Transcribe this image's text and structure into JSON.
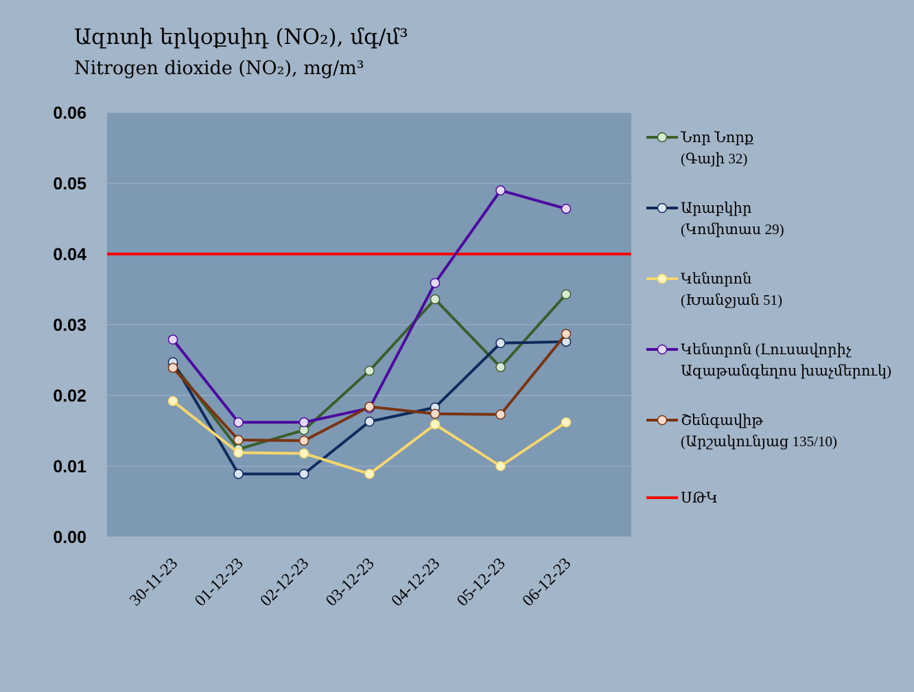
{
  "chart_data": {
    "type": "line",
    "title_line1": "Ազոտի երկօքսիդ (NO₂), մգ/մ³",
    "title_line2": "Nitrogen dioxide (NO₂), mg/m³",
    "categories": [
      "30-11-23",
      "01-12-23",
      "02-12-23",
      "03-12-23",
      "04-12-23",
      "05-12-23",
      "06-12-23"
    ],
    "ylim": [
      0,
      0.06
    ],
    "yticks": [
      "0.00",
      "0.01",
      "0.02",
      "0.03",
      "0.04",
      "0.05",
      "0.06"
    ],
    "grid": true,
    "legend_position": "right",
    "plot_background": "#7e99b3",
    "series": [
      {
        "legend_line1": "Նոր Նորք",
        "legend_line2": "(Գայի 32)",
        "color": "#3a5e2c",
        "marker_fill": "#d9ead3",
        "values": [
          0.0245,
          0.0124,
          0.0151,
          0.0235,
          0.0336,
          0.024,
          0.0343
        ]
      },
      {
        "legend_line1": "Արաբկիր",
        "legend_line2": "(Կոմիտաս 29)",
        "color": "#0f2a5c",
        "marker_fill": "#dbe4f3",
        "values": [
          0.0247,
          0.0089,
          0.0089,
          0.0163,
          0.0183,
          0.0274,
          0.0276
        ]
      },
      {
        "legend_line1": "Կենտրոն",
        "legend_line2": "(Խանջյան 51)",
        "color": "#f5d76e",
        "marker_fill": "#fff5c2",
        "values": [
          0.0192,
          0.0119,
          0.0118,
          0.0089,
          0.0159,
          0.01,
          0.0162
        ]
      },
      {
        "legend_line1": "Կենտրոն (Լուսավորիչ",
        "legend_line2": "Ազաթանգեղոս խաչմերուկ)",
        "color": "#4b0aa0",
        "marker_fill": "#e4d9f5",
        "values": [
          0.0279,
          0.0162,
          0.0162,
          0.0182,
          0.0359,
          0.049,
          0.0464
        ]
      },
      {
        "legend_line1": "Շենգավիթ",
        "legend_line2": "(Արշակունյաց 135/10)",
        "color": "#7a3310",
        "marker_fill": "#f9dccb",
        "values": [
          0.0239,
          0.0137,
          0.0136,
          0.0184,
          0.0174,
          0.0173,
          0.0287
        ]
      }
    ],
    "limit_line": {
      "legend_label": "ՍԹԿ",
      "value": 0.04,
      "color": "#ff0000"
    }
  }
}
